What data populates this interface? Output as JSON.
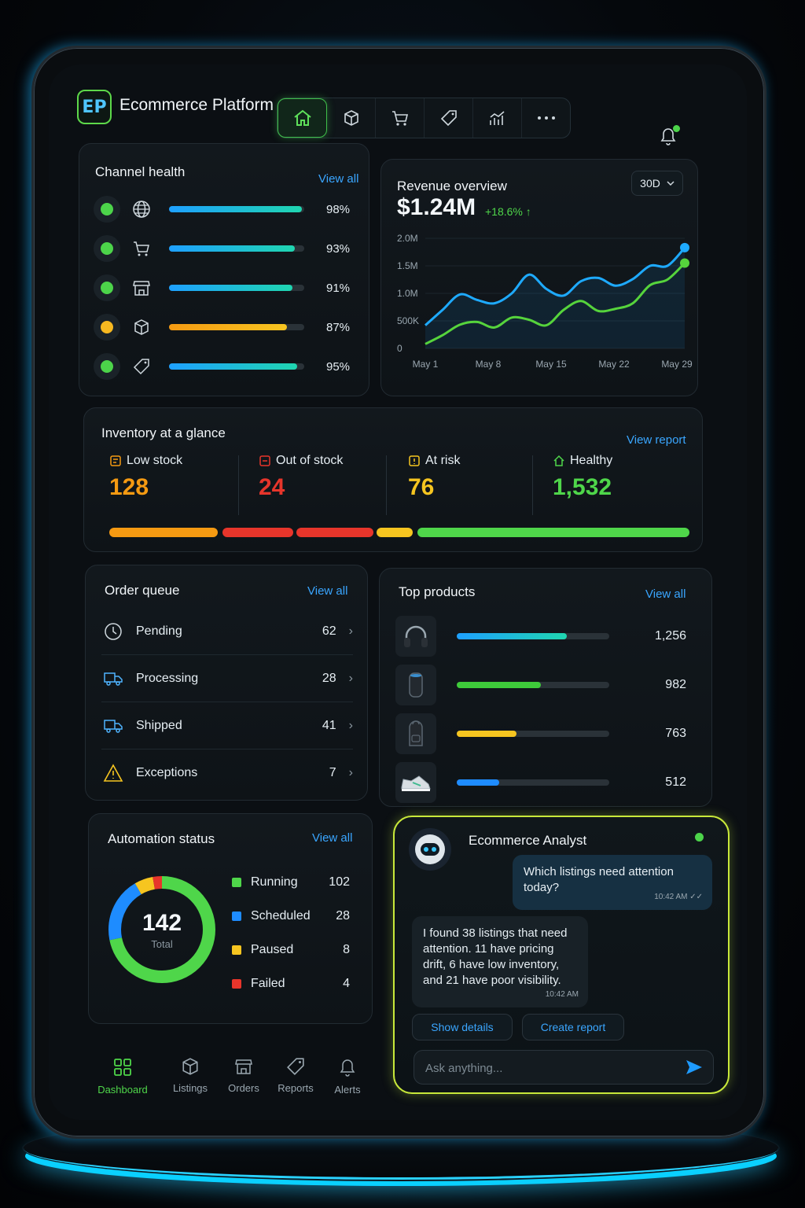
{
  "app": {
    "logo": "EP",
    "title": "Ecommerce Platform"
  },
  "top_nav": [
    {
      "icon": "home-icon",
      "active": true
    },
    {
      "icon": "box-icon"
    },
    {
      "icon": "cart-icon"
    },
    {
      "icon": "tag-icon"
    },
    {
      "icon": "analytics-icon"
    },
    {
      "icon": "more-icon"
    }
  ],
  "channel_health": {
    "title": "Channel health",
    "view_all": "View all",
    "rows": [
      {
        "icon": "globe-icon",
        "status_color": "#4cd44a",
        "value": 98,
        "label": "98%",
        "bar_color": "linear-gradient(90deg,#1ea0ff,#1fd6b0)"
      },
      {
        "icon": "cart-icon",
        "status_color": "#4cd44a",
        "value": 93,
        "label": "93%",
        "bar_color": "linear-gradient(90deg,#1ea0ff,#1fd6b0)"
      },
      {
        "icon": "store-icon",
        "status_color": "#4cd44a",
        "value": 91,
        "label": "91%",
        "bar_color": "linear-gradient(90deg,#1ea0ff,#1fd6b0)"
      },
      {
        "icon": "box-icon",
        "status_color": "#f6b820",
        "value": 87,
        "label": "87%",
        "bar_color": "linear-gradient(90deg,#f59a12,#f6c520)"
      },
      {
        "icon": "tag-icon",
        "status_color": "#4cd44a",
        "value": 95,
        "label": "95%",
        "bar_color": "linear-gradient(90deg,#1ea0ff,#1fd6b0)"
      }
    ]
  },
  "revenue": {
    "title": "Revenue overview",
    "range": "30D",
    "value": "$1.24M",
    "change": "+18.6% ↑"
  },
  "chart_data": {
    "type": "line",
    "title": "Revenue overview",
    "ylim": [
      0,
      2000000
    ],
    "y_ticks": [
      "2.0M",
      "1.5M",
      "1.0M",
      "500K",
      "0"
    ],
    "x_ticks": [
      "May 1",
      "May 8",
      "May 15",
      "May 22",
      "May 29"
    ],
    "x": [
      1,
      3,
      5,
      7,
      9,
      11,
      13,
      15,
      17,
      19,
      21,
      23,
      25,
      27,
      29,
      31
    ],
    "series": [
      {
        "color": "#1eaaff",
        "values": [
          420000,
          700000,
          980000,
          880000,
          820000,
          1000000,
          1340000,
          1080000,
          960000,
          1220000,
          1280000,
          1140000,
          1260000,
          1500000,
          1500000,
          1830000
        ]
      },
      {
        "color": "#56d43c",
        "values": [
          80000,
          240000,
          430000,
          480000,
          380000,
          560000,
          520000,
          420000,
          700000,
          860000,
          680000,
          720000,
          820000,
          1150000,
          1250000,
          1550000
        ]
      }
    ]
  },
  "inventory": {
    "title": "Inventory at a glance",
    "view_report": "View report",
    "items": [
      {
        "label": "Low stock",
        "value": "128",
        "color": "#f59a12",
        "icon": "low-stock-icon"
      },
      {
        "label": "Out of stock",
        "value": "24",
        "color": "#e7352b",
        "icon": "out-of-stock-icon"
      },
      {
        "label": "At risk",
        "value": "76",
        "color": "#f6c520",
        "icon": "at-risk-icon"
      },
      {
        "label": "Healthy",
        "value": "1,532",
        "color": "#4fd64a",
        "icon": "healthy-icon"
      }
    ]
  },
  "order_queue": {
    "title": "Order queue",
    "view_all": "View all",
    "rows": [
      {
        "label": "Pending",
        "count": "62",
        "icon": "clock-icon"
      },
      {
        "label": "Processing",
        "count": "28",
        "icon": "truck-icon"
      },
      {
        "label": "Shipped",
        "count": "41",
        "icon": "truck-icon"
      },
      {
        "label": "Exceptions",
        "count": "7",
        "icon": "warning-icon"
      }
    ]
  },
  "top_products": {
    "title": "Top products",
    "view_all": "View all",
    "rows": [
      {
        "icon": "headphones-icon",
        "value": "1,256",
        "fill": 0.72,
        "color": "linear-gradient(90deg,#1ea0ff,#1fd6b0)"
      },
      {
        "icon": "speaker-icon",
        "value": "982",
        "fill": 0.55,
        "color": "#3ecb3a"
      },
      {
        "icon": "backpack-icon",
        "value": "763",
        "fill": 0.39,
        "color": "#f6c520"
      },
      {
        "icon": "sneaker-icon",
        "value": "512",
        "fill": 0.28,
        "color": "#1e8cff"
      }
    ]
  },
  "automation": {
    "title": "Automation status",
    "view_all": "View all",
    "total": "142",
    "total_label": "Total",
    "items": [
      {
        "label": "Running",
        "value": "102",
        "color": "#4fd64a"
      },
      {
        "label": "Scheduled",
        "value": "28",
        "color": "#1e8cff"
      },
      {
        "label": "Paused",
        "value": "8",
        "color": "#f6c520"
      },
      {
        "label": "Failed",
        "value": "4",
        "color": "#e7352b"
      }
    ]
  },
  "analyst": {
    "title": "Ecommerce Analyst",
    "user_message": "Which listings need attention today?",
    "user_time": "10:42 AM ✓✓",
    "bot_message": "I found 38 listings that need attention. 11 have pricing drift, 6 have low inventory, and 21 have poor visibility.",
    "bot_time": "10:42 AM",
    "show_details": "Show details",
    "create_report": "Create report",
    "placeholder": "Ask anything..."
  },
  "bottom_nav": [
    {
      "label": "Dashboard",
      "icon": "dashboard-icon",
      "active": true
    },
    {
      "label": "Listings",
      "icon": "box-icon"
    },
    {
      "label": "Orders",
      "icon": "store-icon"
    },
    {
      "label": "Reports",
      "icon": "tag-icon"
    },
    {
      "label": "Alerts",
      "icon": "bell-icon"
    }
  ]
}
